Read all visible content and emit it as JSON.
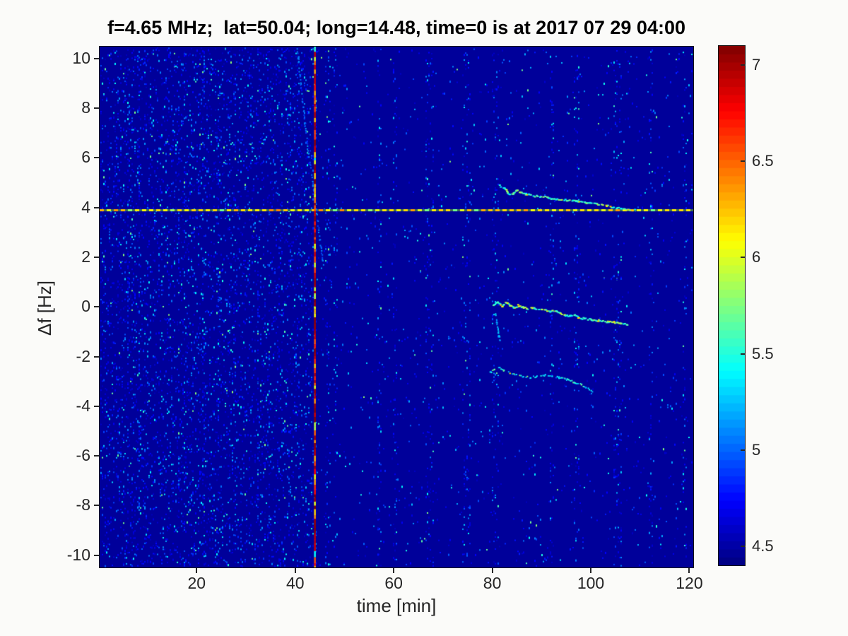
{
  "chart_data": {
    "type": "heatmap",
    "title": "f=4.65 MHz;  lat=50.04; long=14.48, time=0 is at 2017 07 29 04:00",
    "xlabel": "time [min]",
    "ylabel": "Δf [Hz]",
    "xlim": [
      0.3,
      120.8
    ],
    "ylim": [
      -10.49,
      10.48
    ],
    "xticks": [
      20,
      40,
      60,
      80,
      100,
      120
    ],
    "yticks": [
      10,
      8,
      6,
      4,
      2,
      0,
      -2,
      -4,
      -6,
      -8,
      -10
    ],
    "grid": false,
    "colormap": "jet",
    "colorbar": {
      "position": "right",
      "range": [
        4.4,
        7.1
      ],
      "ticks": [
        4.5,
        5,
        5.5,
        6,
        6.5,
        7
      ],
      "segments": 64
    },
    "background_value": 4.47,
    "features": {
      "horizontal_dashed_line": {
        "y_hz": 3.9,
        "value": 6.1,
        "style": "dashed",
        "note": "yellow-green dashed carrier reference line across full width"
      },
      "vertical_line": {
        "x_min": 44.0,
        "value": 7.0,
        "note": "red/orange interference line across full height"
      },
      "diagonal_faint_trace": {
        "value": 5.0,
        "points": [
          [
            40.3,
            10.4
          ],
          [
            41.2,
            8.6
          ],
          [
            42.1,
            7.0
          ],
          [
            43.0,
            5.6
          ],
          [
            43.7,
            4.6
          ],
          [
            44.3,
            3.7
          ],
          [
            44.9,
            2.7
          ],
          [
            45.6,
            1.7
          ]
        ]
      },
      "doppler_traces": [
        {
          "name": "upper-trace",
          "value_range": [
            5.4,
            6.2
          ],
          "points": [
            [
              81.3,
              4.9
            ],
            [
              82.3,
              4.8
            ],
            [
              83.0,
              4.62
            ],
            [
              83.8,
              4.55
            ],
            [
              84.8,
              4.72
            ],
            [
              85.6,
              4.62
            ],
            [
              86.6,
              4.56
            ],
            [
              88,
              4.5
            ],
            [
              89.5,
              4.48
            ],
            [
              91,
              4.42
            ],
            [
              93,
              4.35
            ],
            [
              95,
              4.32
            ],
            [
              97,
              4.28
            ],
            [
              99,
              4.22
            ],
            [
              101,
              4.18
            ],
            [
              103,
              4.1
            ],
            [
              104.5,
              4.02
            ],
            [
              106,
              3.98
            ],
            [
              107.5,
              3.95
            ],
            [
              108.8,
              3.92
            ]
          ]
        },
        {
          "name": "middle-trace",
          "value_range": [
            5.4,
            6.3
          ],
          "points": [
            [
              80.1,
              0.12
            ],
            [
              81,
              0.2
            ],
            [
              81.8,
              0.05
            ],
            [
              82.6,
              0.18
            ],
            [
              83.4,
              0.1
            ],
            [
              84.2,
              -0.02
            ],
            [
              85,
              0.08
            ],
            [
              86,
              0.02
            ],
            [
              87,
              -0.05
            ],
            [
              88,
              -0.02
            ],
            [
              89,
              -0.1
            ],
            [
              90,
              -0.08
            ],
            [
              91.5,
              -0.15
            ],
            [
              92.5,
              -0.12
            ],
            [
              93.5,
              -0.2
            ],
            [
              94.5,
              -0.3
            ],
            [
              95.5,
              -0.35
            ],
            [
              96.5,
              -0.3
            ],
            [
              97.5,
              -0.42
            ],
            [
              98.5,
              -0.45
            ],
            [
              100,
              -0.5
            ],
            [
              101.5,
              -0.52
            ],
            [
              103,
              -0.58
            ],
            [
              104.5,
              -0.6
            ],
            [
              106,
              -0.65
            ],
            [
              107.3,
              -0.7
            ]
          ]
        },
        {
          "name": "middle-trace-hook",
          "value_range": [
            5.1,
            5.4
          ],
          "points": [
            [
              80.5,
              -0.2
            ],
            [
              80.8,
              -0.6
            ],
            [
              81.1,
              -1.0
            ],
            [
              81.5,
              -1.35
            ]
          ]
        },
        {
          "name": "lower-trace",
          "value_range": [
            5.2,
            6.0
          ],
          "points": [
            [
              79.5,
              -2.62
            ],
            [
              80.3,
              -2.48
            ],
            [
              81.2,
              -2.42
            ],
            [
              82.2,
              -2.52
            ],
            [
              83.2,
              -2.6
            ],
            [
              84.5,
              -2.68
            ],
            [
              86,
              -2.78
            ],
            [
              87.5,
              -2.82
            ],
            [
              89,
              -2.76
            ],
            [
              90.5,
              -2.72
            ],
            [
              92,
              -2.76
            ],
            [
              93.5,
              -2.82
            ],
            [
              95,
              -2.9
            ],
            [
              96.5,
              -3.0
            ],
            [
              98,
              -3.1
            ],
            [
              99.5,
              -3.3
            ],
            [
              100.8,
              -3.42
            ]
          ]
        }
      ],
      "noise": {
        "left_region": {
          "t_range": [
            0.3,
            44.2
          ],
          "density": "high blue speckle in vertical streaks"
        },
        "right_region": {
          "density": "sparse",
          "streak_times": [
            46.5,
            48,
            57,
            60,
            66.8,
            67.6,
            74.2,
            75.1,
            80.3,
            80.9,
            92,
            97,
            104.8,
            105.8,
            112,
            118.9
          ]
        }
      }
    }
  }
}
